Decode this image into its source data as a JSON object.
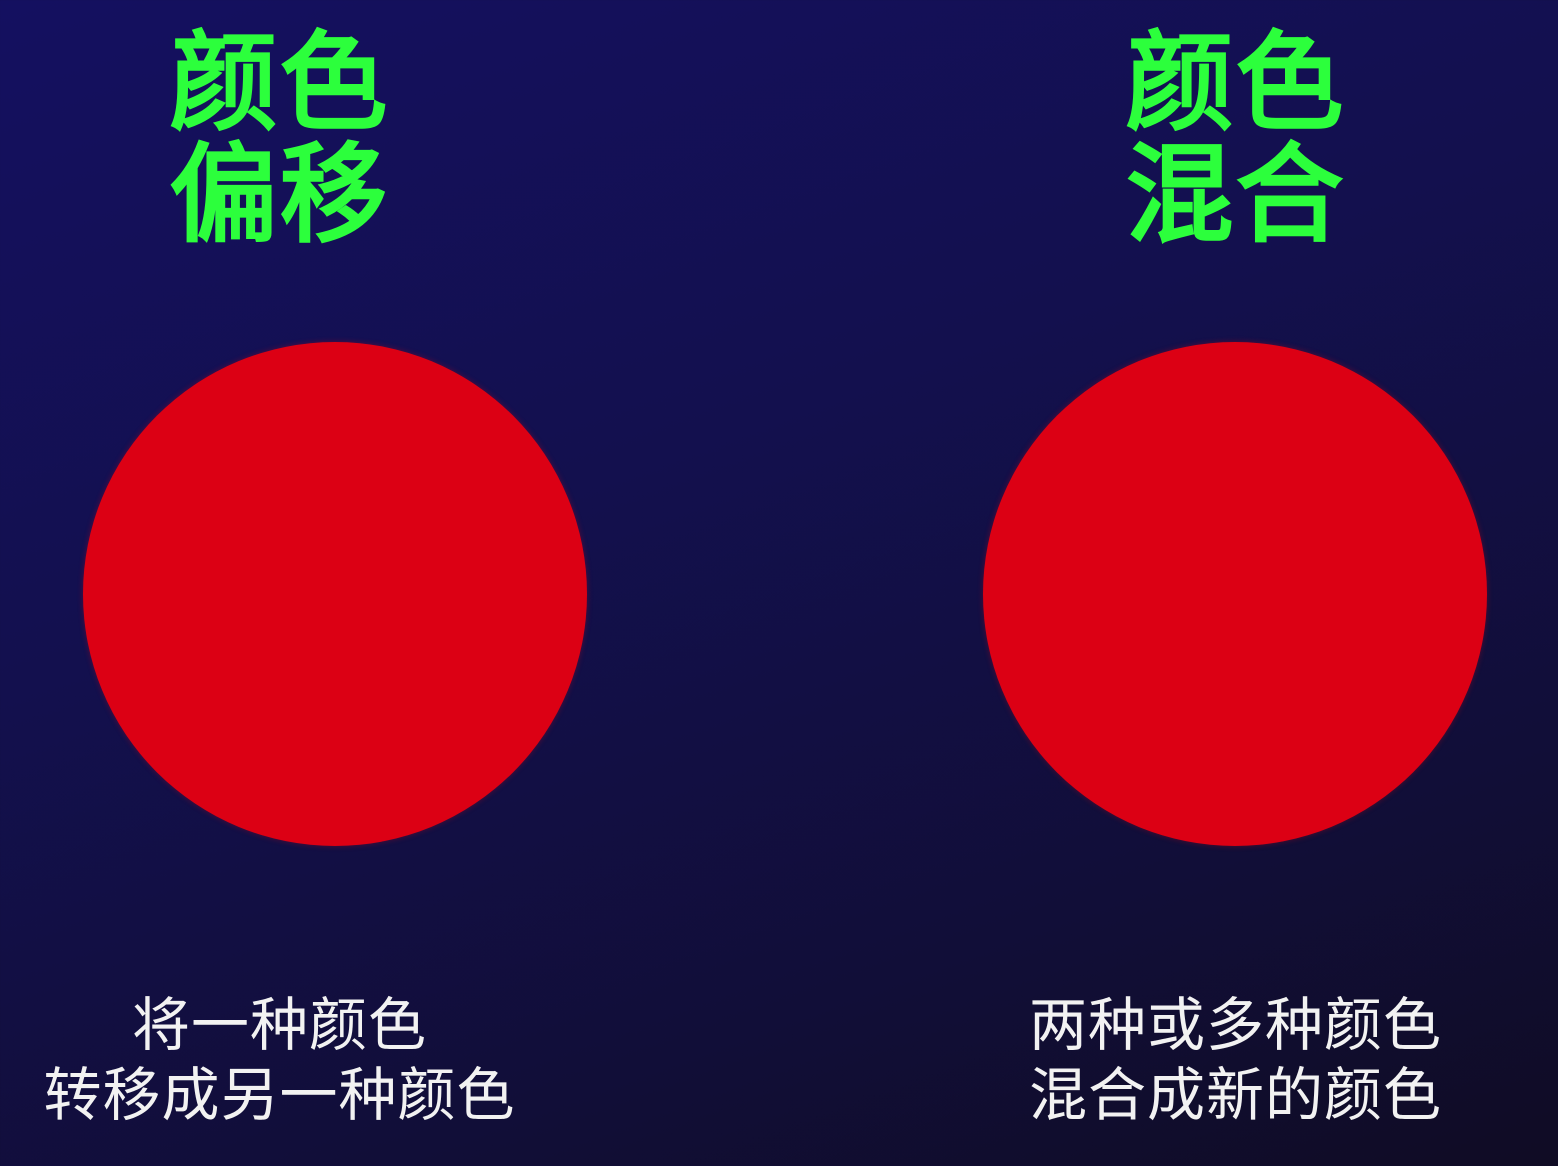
{
  "colors": {
    "background": "#13104e",
    "title": "#2cff3c",
    "circle": "#dc0014",
    "caption": "#f2f2f2"
  },
  "left": {
    "title_line1": "颜色",
    "title_line2": "偏移",
    "caption_line1": "将一种颜色",
    "caption_line2": "转移成另一种颜色"
  },
  "right": {
    "title_line1": "颜色",
    "title_line2": "混合",
    "caption_line1": "两种或多种颜色",
    "caption_line2": "混合成新的颜色"
  }
}
